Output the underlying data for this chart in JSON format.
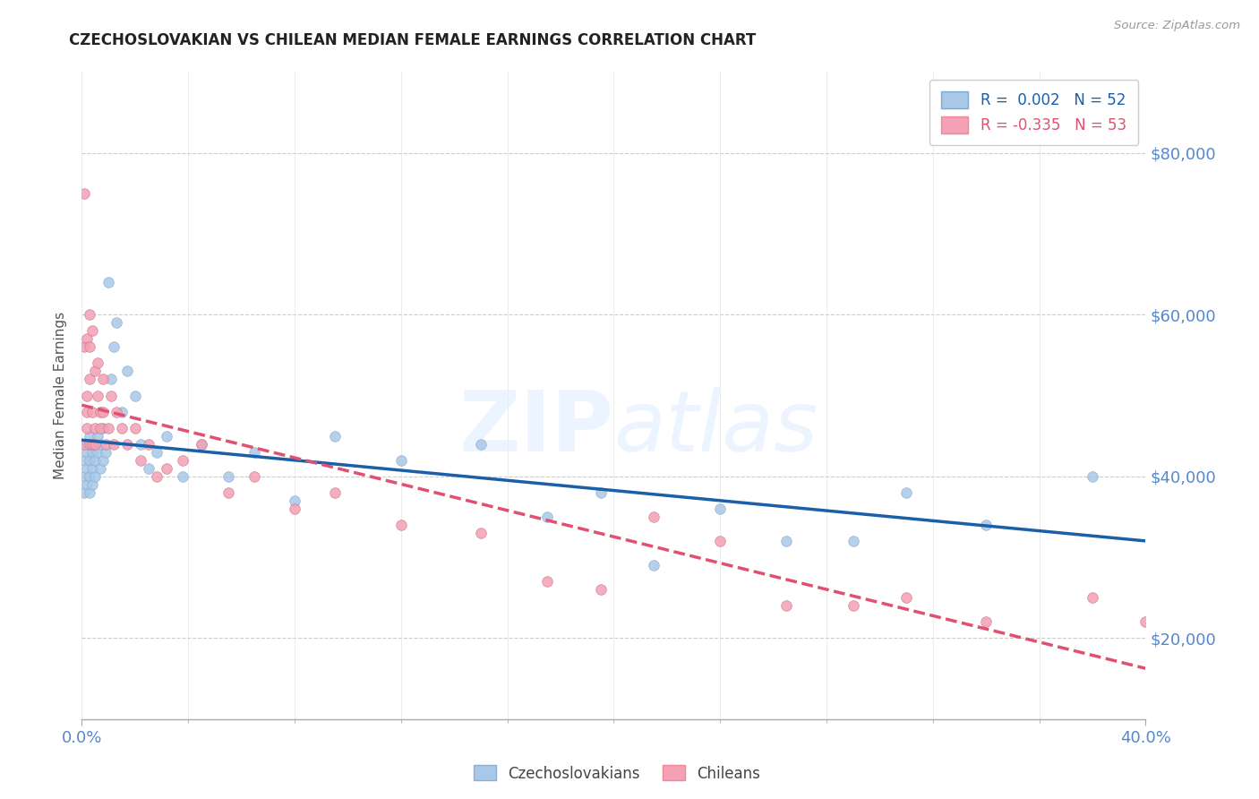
{
  "title": "CZECHOSLOVAKIAN VS CHILEAN MEDIAN FEMALE EARNINGS CORRELATION CHART",
  "source_text": "Source: ZipAtlas.com",
  "ylabel": "Median Female Earnings",
  "xlim": [
    0.0,
    0.4
  ],
  "ylim": [
    10000,
    90000
  ],
  "yticks": [
    20000,
    40000,
    60000,
    80000
  ],
  "xticks": [
    0.0,
    0.4
  ],
  "xtick_labels": [
    "0.0%",
    "40.0%"
  ],
  "ytick_labels": [
    "$20,000",
    "$40,000",
    "$60,000",
    "$80,000"
  ],
  "legend_entry1": "R =  0.002   N = 52",
  "legend_entry2": "R = -0.335   N = 53",
  "legend_label1": "Czechoslovakians",
  "legend_label2": "Chileans",
  "color_czech": "#a8c8e8",
  "color_chile": "#f4a0b5",
  "trendline_czech_color": "#1a5fa8",
  "trendline_chile_color": "#e05070",
  "background_color": "#ffffff",
  "grid_color": "#cccccc",
  "axis_label_color": "#5588cc",
  "watermark_color": "#ddeeff",
  "czech_x": [
    0.001,
    0.001,
    0.001,
    0.002,
    0.002,
    0.002,
    0.002,
    0.003,
    0.003,
    0.003,
    0.003,
    0.004,
    0.004,
    0.004,
    0.005,
    0.005,
    0.005,
    0.006,
    0.006,
    0.007,
    0.007,
    0.008,
    0.008,
    0.009,
    0.01,
    0.011,
    0.012,
    0.013,
    0.015,
    0.017,
    0.02,
    0.022,
    0.025,
    0.028,
    0.032,
    0.038,
    0.045,
    0.055,
    0.065,
    0.08,
    0.095,
    0.12,
    0.15,
    0.175,
    0.195,
    0.215,
    0.24,
    0.265,
    0.29,
    0.31,
    0.34,
    0.38
  ],
  "czech_y": [
    38000,
    42000,
    40000,
    39000,
    44000,
    41000,
    43000,
    40000,
    42000,
    38000,
    45000,
    41000,
    43000,
    39000,
    44000,
    40000,
    42000,
    43000,
    45000,
    41000,
    44000,
    42000,
    46000,
    43000,
    64000,
    52000,
    56000,
    59000,
    48000,
    53000,
    50000,
    44000,
    41000,
    43000,
    45000,
    40000,
    44000,
    40000,
    43000,
    37000,
    45000,
    42000,
    44000,
    35000,
    38000,
    29000,
    36000,
    32000,
    32000,
    38000,
    34000,
    40000
  ],
  "chile_x": [
    0.001,
    0.001,
    0.001,
    0.002,
    0.002,
    0.002,
    0.002,
    0.003,
    0.003,
    0.003,
    0.003,
    0.004,
    0.004,
    0.004,
    0.005,
    0.005,
    0.005,
    0.006,
    0.006,
    0.007,
    0.007,
    0.008,
    0.008,
    0.009,
    0.01,
    0.011,
    0.012,
    0.013,
    0.015,
    0.017,
    0.02,
    0.022,
    0.025,
    0.028,
    0.032,
    0.038,
    0.045,
    0.055,
    0.065,
    0.08,
    0.095,
    0.12,
    0.15,
    0.175,
    0.195,
    0.215,
    0.24,
    0.265,
    0.29,
    0.31,
    0.34,
    0.38,
    0.4
  ],
  "chile_y": [
    75000,
    56000,
    44000,
    48000,
    57000,
    50000,
    46000,
    60000,
    56000,
    52000,
    44000,
    48000,
    44000,
    58000,
    46000,
    53000,
    44000,
    50000,
    54000,
    48000,
    46000,
    52000,
    48000,
    44000,
    46000,
    50000,
    44000,
    48000,
    46000,
    44000,
    46000,
    42000,
    44000,
    40000,
    41000,
    42000,
    44000,
    38000,
    40000,
    36000,
    38000,
    34000,
    33000,
    27000,
    26000,
    35000,
    32000,
    24000,
    24000,
    25000,
    22000,
    25000,
    22000
  ]
}
